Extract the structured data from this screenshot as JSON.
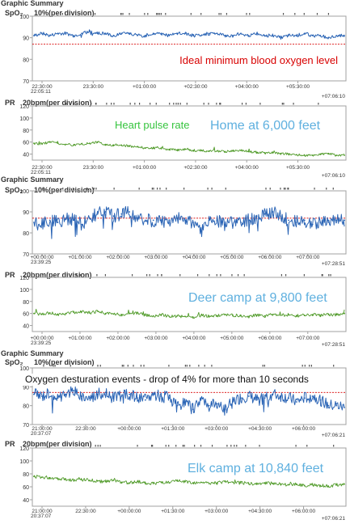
{
  "colors": {
    "spo2": "#2a64b5",
    "pr": "#4f9a28",
    "ideal": "#d80000",
    "location": "#5fb0df",
    "heart_label": "#36c43e",
    "event_text": "#111111",
    "axis_text": "#333333",
    "frame": "#a0a0a0",
    "event_marker": "#555555"
  },
  "chart_data": [
    {
      "type": "line",
      "panel": "spo2",
      "header": "Graphic Summary",
      "label": "SpO₂",
      "scale": "10%(per division)",
      "ylim": [
        70,
        100
      ],
      "yticks": [
        "100",
        "90",
        "80",
        "70"
      ],
      "xticks": [
        "22:30:00",
        "23:30:00",
        "+01:00:00",
        "+02:30:00",
        "+04:00:00",
        "+05:30:00"
      ],
      "start_label": "22:05:11",
      "end_label": "+07:06:10",
      "reference": {
        "value": 87,
        "label": "Ideal minimum blood oxygen level"
      },
      "series": [
        {
          "values": [
            91,
            92,
            91,
            92,
            92,
            91,
            92,
            93,
            92,
            92,
            91,
            92,
            92,
            91,
            91,
            92,
            92,
            91,
            92,
            92,
            91,
            91,
            92,
            92,
            91,
            91,
            92,
            91,
            92,
            91,
            91,
            90,
            91,
            91,
            92,
            91,
            91,
            90,
            91,
            91
          ]
        }
      ]
    },
    {
      "type": "line",
      "panel": "pr",
      "label": "PR",
      "scale": "20bpm(per division)",
      "ylim": [
        30,
        120
      ],
      "yticks": [
        "120",
        "100",
        "80",
        "60",
        "40"
      ],
      "xticks": [
        "22:30:00",
        "23:30:00",
        "+01:00:00",
        "+02:30:00",
        "+04:00:00",
        "+05:30:00"
      ],
      "start_label": "22:05:11",
      "end_label": "+07:06:10",
      "series_label": "Heart pulse rate",
      "location": "Home at 6,000 feet",
      "series": [
        {
          "values": [
            58,
            57,
            60,
            58,
            56,
            55,
            57,
            58,
            60,
            56,
            54,
            55,
            53,
            52,
            50,
            50,
            49,
            48,
            47,
            48,
            46,
            46,
            45,
            45,
            44,
            45,
            46,
            44,
            43,
            42,
            42,
            41,
            40,
            39,
            38,
            38,
            40,
            41,
            38,
            38
          ]
        }
      ]
    },
    {
      "type": "line",
      "panel": "spo2",
      "header": "Graphic Summary",
      "label": "SpO₂",
      "scale": "10%(per division)",
      "ylim": [
        70,
        100
      ],
      "yticks": [
        "100",
        "90",
        "80",
        "70"
      ],
      "xticks": [
        "+00:00:00",
        "+01:00:00",
        "+02:00:00",
        "+03:00:00",
        "+04:00:00",
        "+05:00:00",
        "+06:00:00",
        "+07:00:00"
      ],
      "start_label": "23:39:25",
      "end_label": "+07:28:51",
      "reference": {
        "value": 87
      },
      "series": [
        {
          "values": [
            85,
            84,
            86,
            85,
            87,
            86,
            84,
            87,
            89,
            90,
            88,
            89,
            90,
            87,
            86,
            86,
            85,
            86,
            87,
            86,
            85,
            81,
            86,
            86,
            84,
            87,
            85,
            86,
            88,
            89,
            90,
            88,
            86,
            85,
            86,
            84,
            85,
            85,
            86,
            86
          ]
        }
      ]
    },
    {
      "type": "line",
      "panel": "pr",
      "label": "PR",
      "scale": "20bpm(per division)",
      "ylim": [
        30,
        120
      ],
      "yticks": [
        "120",
        "100",
        "80",
        "60",
        "40"
      ],
      "xticks": [
        "+00:00:00",
        "+01:00:00",
        "+02:00:00",
        "+03:00:00",
        "+04:00:00",
        "+05:00:00",
        "+06:00:00",
        "+07:00:00"
      ],
      "start_label": "23:39:25",
      "end_label": "+07:28:51",
      "location": "Deer camp at 9,800 feet",
      "series": [
        {
          "values": [
            60,
            59,
            61,
            58,
            60,
            62,
            63,
            61,
            64,
            60,
            59,
            58,
            60,
            61,
            57,
            56,
            58,
            55,
            56,
            55,
            54,
            57,
            55,
            56,
            58,
            57,
            56,
            55,
            57,
            56,
            58,
            57,
            58,
            56,
            57,
            58,
            57,
            58,
            58,
            60
          ]
        }
      ]
    },
    {
      "type": "line",
      "panel": "spo2",
      "header": "Graphic Summary",
      "label": "SpO₂",
      "scale": "10%(per division)",
      "ylim": [
        70,
        100
      ],
      "yticks": [
        "100",
        "90",
        "80",
        "70"
      ],
      "xticks": [
        "21:00:00",
        "22:30:00",
        "+00:00:00",
        "+01:30:00",
        "+03:00:00",
        "+04:30:00",
        "+06:00:00"
      ],
      "start_label": "20:37:07",
      "end_label": "+07:06:21",
      "reference": {
        "value": 87
      },
      "annotation": "Oxygen desturation events - drop of 4% for more than 10 seconds",
      "series": [
        {
          "values": [
            86,
            85,
            87,
            84,
            86,
            88,
            85,
            84,
            86,
            87,
            84,
            85,
            86,
            84,
            83,
            86,
            85,
            84,
            80,
            82,
            78,
            84,
            80,
            81,
            78,
            82,
            84,
            85,
            83,
            84,
            86,
            85,
            84,
            82,
            84,
            85,
            83,
            80,
            80,
            79
          ]
        }
      ]
    },
    {
      "type": "line",
      "panel": "pr",
      "label": "PR",
      "scale": "20bpm(per division)",
      "ylim": [
        30,
        120
      ],
      "yticks": [
        "120",
        "100",
        "80",
        "60",
        "40"
      ],
      "xticks": [
        "21:00:00",
        "22:30:00",
        "+00:00:00",
        "+01:30:00",
        "+03:00:00",
        "+04:30:00",
        "+06:00:00"
      ],
      "start_label": "20:37:07",
      "end_label": "+07:06:21",
      "location": "Elk camp at 10,840 feet",
      "series": [
        {
          "values": [
            76,
            75,
            74,
            73,
            72,
            70,
            71,
            70,
            69,
            68,
            70,
            67,
            66,
            68,
            66,
            65,
            67,
            66,
            69,
            68,
            66,
            67,
            65,
            66,
            68,
            67,
            66,
            65,
            64,
            66,
            65,
            64,
            63,
            64,
            62,
            63,
            62,
            61,
            63,
            64
          ]
        }
      ]
    }
  ]
}
